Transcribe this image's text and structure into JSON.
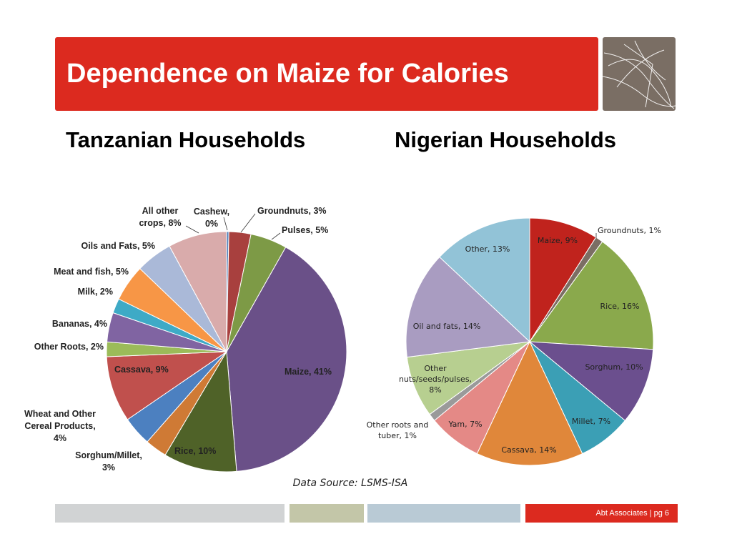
{
  "slide": {
    "title": "Dependence on Maize for Calories",
    "source": "Data Source: LSMS-ISA",
    "footer": "Abt Associates  |  pg 6",
    "colors": {
      "title_bg": "#dc2a1f",
      "logo_bg": "#7a6e64",
      "footer_red": "#dc2a1f",
      "footer_gray": "#d1d3d4",
      "footer_olive": "#c3c6a8",
      "footer_blue": "#b9cad5"
    }
  },
  "chart_data": [
    {
      "type": "pie",
      "title": "Tanzanian Households",
      "start": "12 o'clock, clockwise",
      "slices": [
        {
          "label": "Cashew, 0%",
          "name": "Cashew",
          "value": 0.3,
          "color": "#4f81bd"
        },
        {
          "label": "Groundnuts, 3%",
          "name": "Groundnuts",
          "value": 3,
          "color": "#a8403e"
        },
        {
          "label": "Pulses, 5%",
          "name": "Pulses",
          "value": 5,
          "color": "#7d9a46"
        },
        {
          "label": "Maize, 41%",
          "name": "Maize",
          "value": 41,
          "color": "#6a5088"
        },
        {
          "label": "Rice, 10%",
          "name": "Rice",
          "value": 10,
          "color": "#4f6228"
        },
        {
          "label": "Sorghum/Millet, 3%",
          "name": "Sorghum/Millet",
          "value": 3,
          "color": "#cf7a35"
        },
        {
          "label": "Wheat and Other Cereal Products, 4%",
          "name": "Wheat and Other Cereal Products",
          "value": 4,
          "color": "#4c80c0"
        },
        {
          "label": "Cassava, 9%",
          "name": "Cassava",
          "value": 9,
          "color": "#c0504d"
        },
        {
          "label": "Other Roots, 2%",
          "name": "Other Roots",
          "value": 2,
          "color": "#9bbb59"
        },
        {
          "label": "Bananas, 4%",
          "name": "Bananas",
          "value": 4,
          "color": "#8064a2"
        },
        {
          "label": "Milk, 2%",
          "name": "Milk",
          "value": 2,
          "color": "#3eaac6"
        },
        {
          "label": "Meat and fish, 5%",
          "name": "Meat and fish",
          "value": 5,
          "color": "#f79646"
        },
        {
          "label": "Oils and Fats, 5%",
          "name": "Oils and Fats",
          "value": 5,
          "color": "#aab9d8"
        },
        {
          "label": "All other crops, 8%",
          "name": "All other crops",
          "value": 8,
          "color": "#d9abab"
        }
      ]
    },
    {
      "type": "pie",
      "title": "Nigerian Households",
      "start": "12 o'clock, clockwise",
      "slices": [
        {
          "label": "Maize, 9%",
          "name": "Maize",
          "value": 9,
          "color": "#c0231d"
        },
        {
          "label": "Groundnuts, 1%",
          "name": "Groundnuts",
          "value": 1,
          "color": "#7b6e64"
        },
        {
          "label": "Rice, 16%",
          "name": "Rice",
          "value": 16,
          "color": "#8aa94c"
        },
        {
          "label": "Sorghum, 10%",
          "name": "Sorghum",
          "value": 10,
          "color": "#6b4f8e"
        },
        {
          "label": "Millet, 7%",
          "name": "Millet",
          "value": 7,
          "color": "#3b9fb5"
        },
        {
          "label": "Cassava, 14%",
          "name": "Cassava",
          "value": 14,
          "color": "#e0873a"
        },
        {
          "label": "Yam, 7%",
          "name": "Yam",
          "value": 7,
          "color": "#e48986"
        },
        {
          "label": "Other roots and tuber, 1%",
          "name": "Other roots and tuber",
          "value": 1,
          "color": "#9a9a9a"
        },
        {
          "label": "Other nuts/seeds/pulses, 8%",
          "name": "Other nuts/seeds/pulses",
          "value": 8,
          "color": "#b7cf90"
        },
        {
          "label": "Oil and fats, 14%",
          "name": "Oil and fats",
          "value": 14,
          "color": "#a99cc1"
        },
        {
          "label": "Other, 13%",
          "name": "Other",
          "value": 13,
          "color": "#92c3d7"
        }
      ]
    }
  ]
}
